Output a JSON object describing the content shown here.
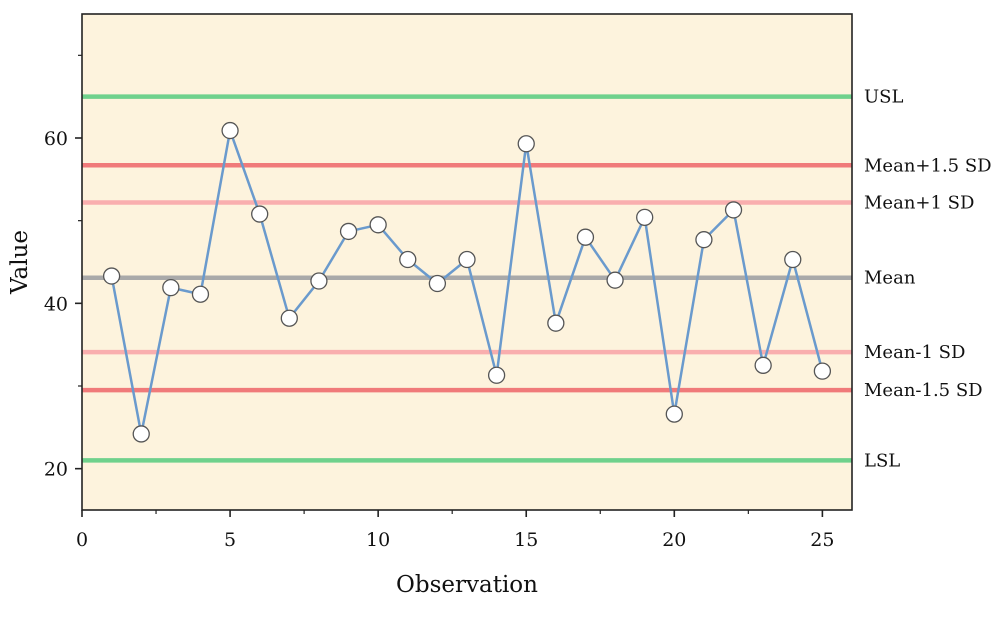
{
  "main": {
    "title": ""
  },
  "chart_data": {
    "type": "line",
    "title": "",
    "xlabel": "Observation",
    "ylabel": "Value",
    "xlim": [
      0,
      26
    ],
    "ylim": [
      15,
      75
    ],
    "x_ticks": [
      "0",
      "5",
      "10",
      "15",
      "20",
      "25"
    ],
    "y_ticks": [
      "20",
      "40",
      "60"
    ],
    "grid": false,
    "legend": "none",
    "plot_background": "#FDF3DD",
    "series": [
      {
        "color": "#6A9ACD",
        "marker": "open-circle",
        "x": [
          1,
          2,
          3,
          4,
          5,
          6,
          7,
          8,
          9,
          10,
          11,
          12,
          13,
          14,
          15,
          16,
          17,
          18,
          19,
          20,
          21,
          22,
          23,
          24,
          25
        ],
        "y": [
          43.3,
          24.2,
          41.9,
          41.1,
          60.9,
          50.8,
          38.2,
          42.7,
          48.7,
          49.5,
          45.3,
          42.4,
          45.3,
          31.3,
          59.3,
          37.6,
          48.0,
          42.8,
          50.4,
          26.6,
          47.7,
          51.3,
          32.5,
          45.3,
          31.8
        ]
      }
    ],
    "reference_lines": [
      {
        "label": "USL",
        "y": 65.0,
        "color": "#6FD18C"
      },
      {
        "label": "Mean+1.5 SD",
        "y": 56.7,
        "color": "#F07A7A"
      },
      {
        "label": "Mean+1 SD",
        "y": 52.2,
        "color": "#F9AEAE"
      },
      {
        "label": "Mean",
        "y": 43.1,
        "color": "#A9A9A9"
      },
      {
        "label": "Mean-1 SD",
        "y": 34.1,
        "color": "#F9AEAE"
      },
      {
        "label": "Mean-1.5 SD",
        "y": 29.5,
        "color": "#F07A7A"
      },
      {
        "label": "LSL",
        "y": 21.0,
        "color": "#6FD18C"
      }
    ]
  }
}
